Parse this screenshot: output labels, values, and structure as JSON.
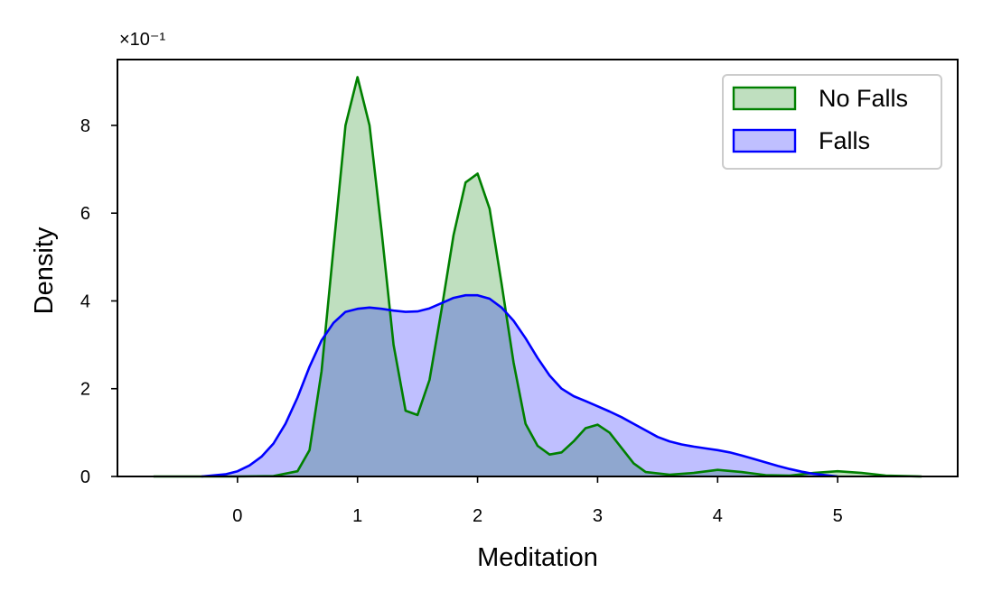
{
  "chart_data": {
    "type": "area",
    "xlabel": "Meditation",
    "ylabel": "Density",
    "y_offset_text": "×10⁻¹",
    "xlim": [
      -1.0,
      6.0
    ],
    "ylim": [
      0,
      0.95
    ],
    "x_ticks": [
      0,
      1,
      2,
      3,
      4,
      5
    ],
    "y_ticks": [
      0,
      2,
      4,
      6,
      8
    ],
    "y_tick_scale": 0.1,
    "grid": false,
    "legend_position": "top-right",
    "series": [
      {
        "name": "No Falls",
        "line_color": "#008000",
        "fill_color": "#008000",
        "fill_opacity": 0.25,
        "points": [
          [
            -0.7,
            0.0
          ],
          [
            0.0,
            0.0
          ],
          [
            0.3,
            0.001
          ],
          [
            0.5,
            0.012
          ],
          [
            0.6,
            0.06
          ],
          [
            0.7,
            0.24
          ],
          [
            0.8,
            0.52
          ],
          [
            0.9,
            0.8
          ],
          [
            1.0,
            0.91
          ],
          [
            1.1,
            0.8
          ],
          [
            1.2,
            0.56
          ],
          [
            1.3,
            0.3
          ],
          [
            1.4,
            0.15
          ],
          [
            1.5,
            0.14
          ],
          [
            1.6,
            0.22
          ],
          [
            1.7,
            0.38
          ],
          [
            1.8,
            0.55
          ],
          [
            1.9,
            0.67
          ],
          [
            2.0,
            0.69
          ],
          [
            2.1,
            0.61
          ],
          [
            2.2,
            0.44
          ],
          [
            2.3,
            0.26
          ],
          [
            2.4,
            0.12
          ],
          [
            2.5,
            0.07
          ],
          [
            2.6,
            0.05
          ],
          [
            2.7,
            0.055
          ],
          [
            2.8,
            0.08
          ],
          [
            2.9,
            0.11
          ],
          [
            3.0,
            0.118
          ],
          [
            3.1,
            0.1
          ],
          [
            3.2,
            0.065
          ],
          [
            3.3,
            0.03
          ],
          [
            3.4,
            0.01
          ],
          [
            3.6,
            0.004
          ],
          [
            3.8,
            0.008
          ],
          [
            4.0,
            0.015
          ],
          [
            4.2,
            0.01
          ],
          [
            4.4,
            0.003
          ],
          [
            4.6,
            0.002
          ],
          [
            4.8,
            0.008
          ],
          [
            5.0,
            0.012
          ],
          [
            5.2,
            0.008
          ],
          [
            5.4,
            0.002
          ],
          [
            5.7,
            0.0
          ]
        ]
      },
      {
        "name": "Falls",
        "line_color": "#0000ff",
        "fill_color": "#0000ff",
        "fill_opacity": 0.25,
        "points": [
          [
            -0.3,
            0.0
          ],
          [
            -0.1,
            0.005
          ],
          [
            0.0,
            0.012
          ],
          [
            0.1,
            0.025
          ],
          [
            0.2,
            0.045
          ],
          [
            0.3,
            0.075
          ],
          [
            0.4,
            0.12
          ],
          [
            0.5,
            0.18
          ],
          [
            0.6,
            0.25
          ],
          [
            0.7,
            0.31
          ],
          [
            0.8,
            0.35
          ],
          [
            0.9,
            0.375
          ],
          [
            1.0,
            0.382
          ],
          [
            1.1,
            0.385
          ],
          [
            1.2,
            0.382
          ],
          [
            1.3,
            0.378
          ],
          [
            1.4,
            0.375
          ],
          [
            1.5,
            0.376
          ],
          [
            1.6,
            0.383
          ],
          [
            1.7,
            0.395
          ],
          [
            1.8,
            0.407
          ],
          [
            1.9,
            0.413
          ],
          [
            2.0,
            0.413
          ],
          [
            2.1,
            0.405
          ],
          [
            2.2,
            0.385
          ],
          [
            2.3,
            0.355
          ],
          [
            2.4,
            0.315
          ],
          [
            2.5,
            0.27
          ],
          [
            2.6,
            0.23
          ],
          [
            2.7,
            0.2
          ],
          [
            2.8,
            0.183
          ],
          [
            2.9,
            0.172
          ],
          [
            3.0,
            0.16
          ],
          [
            3.1,
            0.148
          ],
          [
            3.2,
            0.135
          ],
          [
            3.3,
            0.12
          ],
          [
            3.4,
            0.105
          ],
          [
            3.5,
            0.09
          ],
          [
            3.6,
            0.08
          ],
          [
            3.7,
            0.073
          ],
          [
            3.8,
            0.068
          ],
          [
            3.9,
            0.064
          ],
          [
            4.0,
            0.06
          ],
          [
            4.1,
            0.055
          ],
          [
            4.2,
            0.048
          ],
          [
            4.3,
            0.04
          ],
          [
            4.4,
            0.032
          ],
          [
            4.5,
            0.024
          ],
          [
            4.6,
            0.017
          ],
          [
            4.7,
            0.011
          ],
          [
            4.8,
            0.006
          ],
          [
            4.9,
            0.003
          ],
          [
            5.0,
            0.0
          ]
        ]
      }
    ]
  }
}
